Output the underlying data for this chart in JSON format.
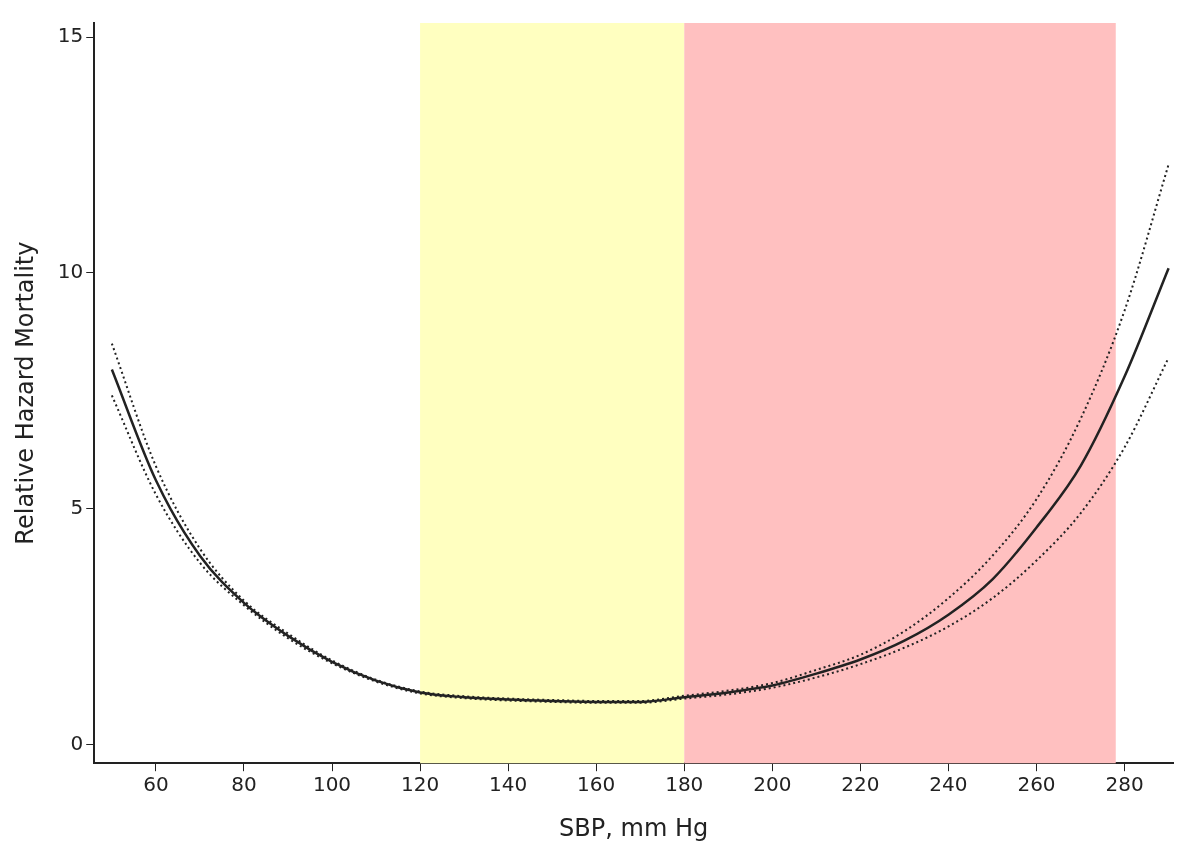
{
  "chart_data": {
    "type": "line",
    "xlabel": "SBP, mm Hg",
    "ylabel": "Relative Hazard Mortality",
    "x": [
      50,
      60,
      70,
      80,
      90,
      100,
      110,
      120,
      130,
      140,
      150,
      160,
      170,
      180,
      190,
      200,
      210,
      220,
      230,
      240,
      250,
      260,
      270,
      280,
      290
    ],
    "series": [
      {
        "color": "#222222",
        "line_style": "solid",
        "values": [
          7.95,
          5.6,
          4.0,
          3.0,
          2.3,
          1.75,
          1.35,
          1.1,
          1.0,
          0.95,
          0.92,
          0.9,
          0.9,
          1.0,
          1.1,
          1.25,
          1.5,
          1.8,
          2.2,
          2.75,
          3.5,
          4.6,
          5.9,
          7.8,
          10.1
        ]
      },
      {
        "color": "#222222",
        "line_style": "dotted",
        "values": [
          7.4,
          5.3,
          3.85,
          2.95,
          2.25,
          1.72,
          1.33,
          1.08,
          0.98,
          0.93,
          0.9,
          0.88,
          0.88,
          0.97,
          1.06,
          1.2,
          1.42,
          1.7,
          2.05,
          2.5,
          3.1,
          3.9,
          4.9,
          6.3,
          8.2
        ]
      },
      {
        "color": "#222222",
        "line_style": "dotted",
        "values": [
          8.5,
          5.9,
          4.15,
          3.05,
          2.35,
          1.78,
          1.37,
          1.12,
          1.02,
          0.97,
          0.94,
          0.92,
          0.92,
          1.03,
          1.14,
          1.3,
          1.58,
          1.9,
          2.4,
          3.1,
          4.0,
          5.2,
          6.9,
          9.2,
          12.3
        ]
      }
    ],
    "bands": [
      {
        "axis": "x",
        "from": 120,
        "to": 180,
        "color": "#ffffc0"
      },
      {
        "axis": "x",
        "from": 180,
        "to": 278,
        "color": "#ffc0c0"
      }
    ],
    "xlim": [
      46,
      291
    ],
    "ylim": [
      -0.4,
      15.3
    ],
    "xticks": [
      60,
      80,
      100,
      120,
      140,
      160,
      180,
      200,
      220,
      240,
      260,
      280
    ],
    "yticks": [
      0,
      5,
      10,
      15
    ],
    "grid": false,
    "legend": false,
    "marker": "none"
  }
}
